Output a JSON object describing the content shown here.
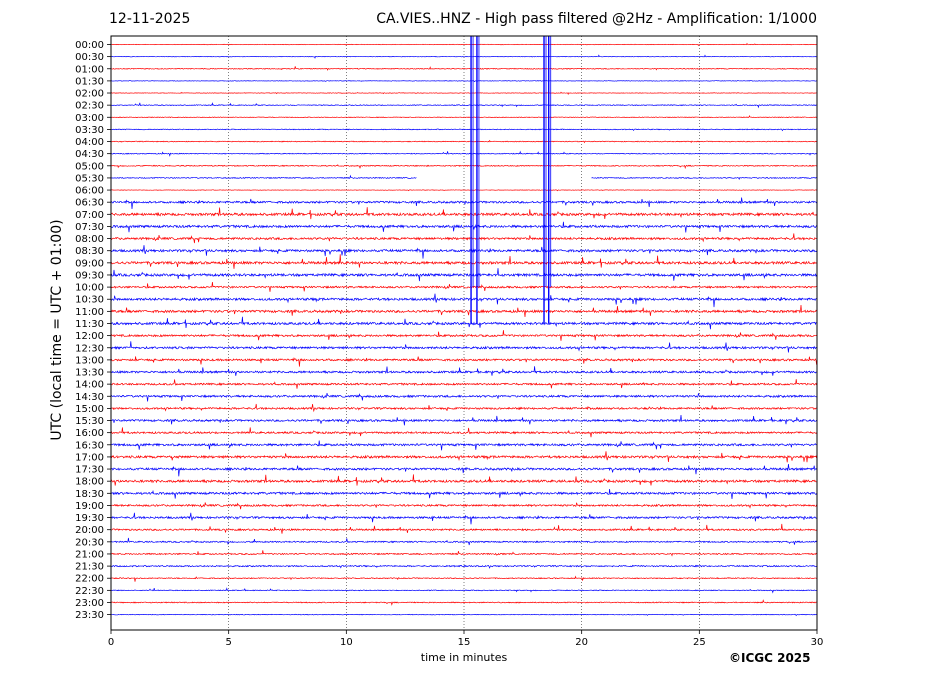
{
  "header": {
    "date": "12-11-2025",
    "title": "CA.VIES..HNZ - High pass filtered @2Hz - Amplification: 1/1000"
  },
  "footer": {
    "copyright": "©ICGC 2025"
  },
  "chart_data": {
    "type": "line",
    "subtype": "helicorder",
    "title": "CA.VIES..HNZ - High pass filtered @2Hz - Amplification: 1/1000",
    "xlabel": "time in minutes",
    "ylabel": "UTC (local time = UTC + 01:00)",
    "xlim": [
      0,
      30
    ],
    "x_ticks": [
      0,
      5,
      10,
      15,
      20,
      25,
      30
    ],
    "y_tick_labels": [
      "00:00",
      "00:30",
      "01:00",
      "01:30",
      "02:00",
      "02:30",
      "03:00",
      "03:30",
      "04:00",
      "04:30",
      "05:00",
      "05:30",
      "06:00",
      "06:30",
      "07:00",
      "07:30",
      "08:00",
      "08:30",
      "09:00",
      "09:30",
      "10:00",
      "10:30",
      "11:00",
      "11:30",
      "12:00",
      "12:30",
      "13:00",
      "13:30",
      "14:00",
      "14:30",
      "15:00",
      "15:30",
      "16:00",
      "16:30",
      "17:00",
      "17:30",
      "18:00",
      "18:30",
      "19:00",
      "19:30",
      "20:00",
      "20:30",
      "21:00",
      "21:30",
      "22:00",
      "22:30",
      "23:00",
      "23:30"
    ],
    "trace_colors": [
      "#ff0000",
      "#0000ff"
    ],
    "grid": "vertical",
    "activity_level_by_row": [
      0.3,
      0.3,
      0.5,
      0.3,
      0.3,
      0.5,
      0.4,
      0.5,
      0.5,
      0.5,
      0.6,
      0.6,
      0.3,
      1.2,
      1.5,
      1.4,
      1.3,
      1.4,
      1.5,
      1.5,
      1.1,
      1.4,
      1.4,
      1.4,
      1.2,
      1.3,
      1.2,
      1.2,
      1.1,
      1.2,
      1.1,
      1.2,
      1.1,
      1.3,
      1.4,
      1.3,
      1.4,
      1.3,
      1.1,
      1.2,
      1.0,
      0.8,
      0.8,
      0.8,
      0.6,
      0.5,
      0.6,
      0.4
    ],
    "data_gap": {
      "row": "05:30",
      "from_minute": 13.0,
      "to_minute": 20.4
    },
    "events": [
      {
        "row": "00:00",
        "minute": 15.3,
        "span_rows": 23
      },
      {
        "row": "00:00",
        "minute": 15.55,
        "span_rows": 23
      },
      {
        "row": "00:00",
        "minute": 18.4,
        "span_rows": 23
      },
      {
        "row": "00:00",
        "minute": 18.6,
        "span_rows": 23
      }
    ]
  }
}
